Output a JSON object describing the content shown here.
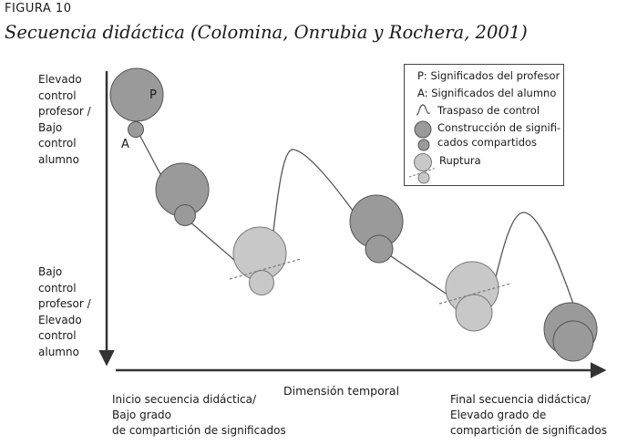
{
  "figure": {
    "label": "FIGURA 10",
    "title": "Secuencia didáctica (Colomina, Onrubia y Rochera, 2001)"
  },
  "y_axis": {
    "top_label": [
      "Elevado",
      "control",
      "profesor /",
      "Bajo",
      "control",
      "alumno"
    ],
    "bottom_label": [
      "Bajo",
      "control",
      "profesor /",
      "Elevado",
      "control",
      "alumno"
    ]
  },
  "x_axis": {
    "title": "Dimensión temporal",
    "start_label": [
      "Inicio secuencia didáctica/",
      "Bajo grado",
      "de compartición de significados"
    ],
    "end_label": [
      "Final secuencia didáctica/",
      "Elevado grado de",
      "compartición de significados"
    ]
  },
  "markers": {
    "teacher": "P",
    "student": "A"
  },
  "legend": {
    "p_item": "P:  Significados del profesor",
    "a_item": "A:  Significados del alumno",
    "transfer": "Traspaso de control",
    "construction": "Construcción de signifi- cados compartidos",
    "construction_line1": "Construcción de signifi-",
    "construction_line2": "cados compartidos",
    "rupture": "Ruptura"
  },
  "colors": {
    "dark_circle": "#9a9a9a",
    "light_circle": "#c8c8c8",
    "stroke": "#555555",
    "axis": "#333333"
  }
}
